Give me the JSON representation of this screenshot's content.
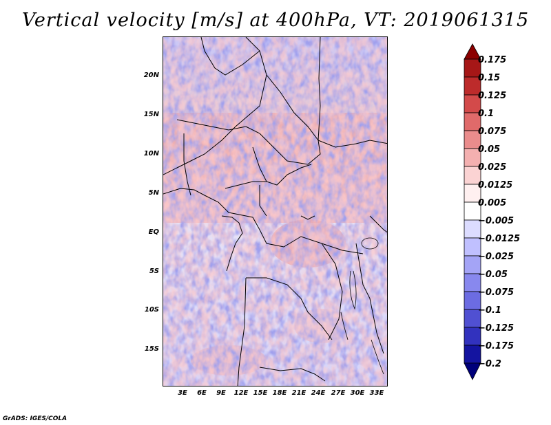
{
  "title": "Vertical velocity [m/s] at 400hPa, VT: 2019061315",
  "lat_labels": [
    "20N",
    "15N",
    "10N",
    "5N",
    "EQ",
    "5S",
    "10S",
    "15S"
  ],
  "lon_labels": [
    "3E",
    "6E",
    "9E",
    "12E",
    "15E",
    "18E",
    "21E",
    "24E",
    "27E",
    "30E",
    "33E"
  ],
  "colorbar": {
    "labels": [
      "0.175",
      "0.15",
      "0.125",
      "0.1",
      "0.075",
      "0.05",
      "0.025",
      "0.0125",
      "0.005",
      "−0.005",
      "−0.0125",
      "−0.025",
      "−0.05",
      "−0.075",
      "−0.1",
      "−0.125",
      "−0.175",
      "−0.2"
    ],
    "colors": [
      "#8b0000",
      "#a61717",
      "#bd2b2b",
      "#d34a4a",
      "#e06a6a",
      "#ea8c8c",
      "#f4b0b0",
      "#fbd3d3",
      "#fff0f0",
      "#ffffff",
      "#dcdcff",
      "#c0c0ff",
      "#a4a4f6",
      "#8888ee",
      "#6c6ce2",
      "#5050d2",
      "#3232be",
      "#1414a0",
      "#00007a"
    ]
  },
  "credit": "GrADS: IGES/COLA"
}
